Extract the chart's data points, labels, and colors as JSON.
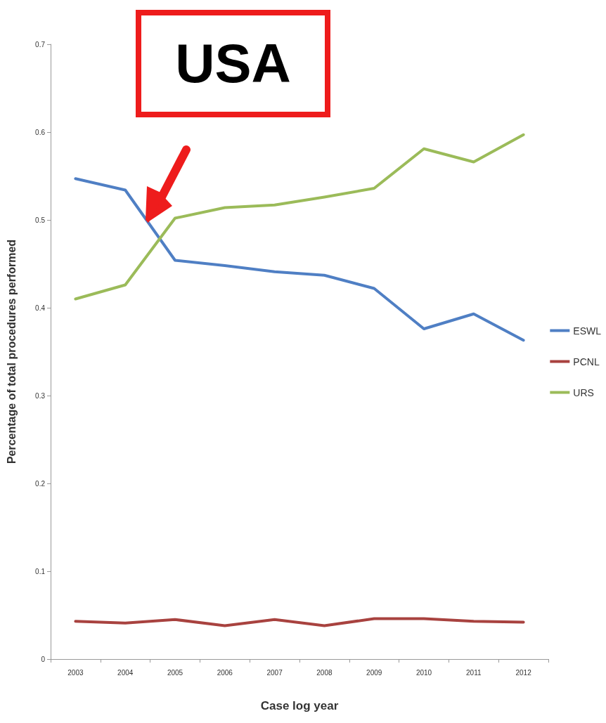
{
  "chart_data": {
    "type": "line",
    "xlabel": "Case log year",
    "ylabel": "Percentage of total procedures performed",
    "annotations": [
      "USA"
    ],
    "categories": [
      "2003",
      "2004",
      "2005",
      "2006",
      "2007",
      "2008",
      "2009",
      "2010",
      "2011",
      "2012"
    ],
    "series": [
      {
        "name": "ESWL",
        "color": "#4f7fc4",
        "values": [
          0.547,
          0.534,
          0.454,
          0.448,
          0.441,
          0.437,
          0.422,
          0.376,
          0.393,
          0.363
        ]
      },
      {
        "name": "PCNL",
        "color": "#a8423f",
        "values": [
          0.043,
          0.041,
          0.045,
          0.038,
          0.045,
          0.038,
          0.046,
          0.046,
          0.043,
          0.042
        ]
      },
      {
        "name": "URS",
        "color": "#9bbb59",
        "values": [
          0.41,
          0.426,
          0.502,
          0.514,
          0.517,
          0.526,
          0.536,
          0.581,
          0.566,
          0.597
        ]
      }
    ],
    "ylim": [
      0,
      0.7
    ],
    "yticks": [
      0,
      0.1,
      0.2,
      0.3,
      0.4,
      0.5,
      0.6,
      0.7
    ],
    "grid": false,
    "legend": "right",
    "marker": "none",
    "line_style": "solid"
  }
}
